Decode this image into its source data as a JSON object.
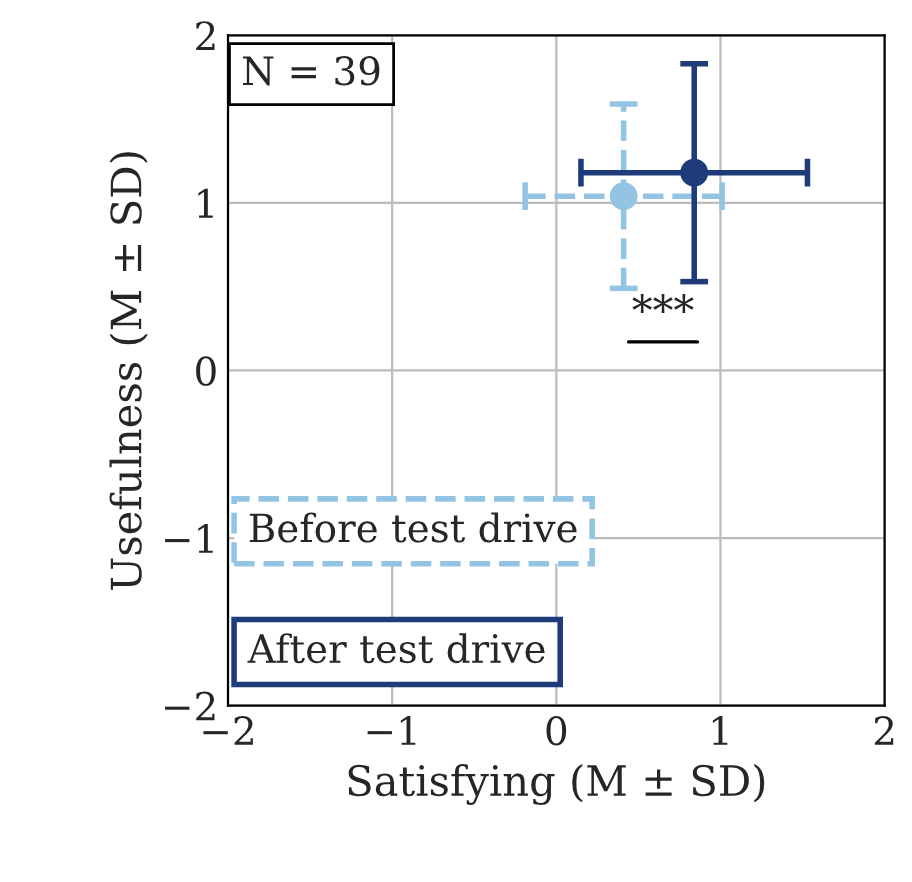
{
  "chart_data": {
    "type": "scatter",
    "xlabel": "Satisfying (M ± SD)",
    "ylabel": "Usefulness (M ± SD)",
    "xlim": [
      -2,
      2
    ],
    "ylim": [
      -2,
      2
    ],
    "xticks": [
      -2,
      -1,
      0,
      1,
      2
    ],
    "yticks": [
      -2,
      -1,
      0,
      1,
      2
    ],
    "grid": true,
    "legend": "bottom left",
    "marker": "circle",
    "series": [
      {
        "name": "Before test drive",
        "color": "#94c4e4",
        "x": [
          0.41
        ],
        "values": [
          1.04
        ],
        "errors": [
          0.55
        ],
        "xerrors": [
          0.6
        ],
        "line_style": "dashed"
      },
      {
        "name": "After test drive",
        "color": "#1f3b7a",
        "x": [
          0.84
        ],
        "values": [
          1.18
        ],
        "errors": [
          0.65
        ],
        "xerrors": [
          0.69
        ],
        "line_style": "solid"
      }
    ],
    "annotations": [
      "N = 39",
      "***"
    ]
  }
}
